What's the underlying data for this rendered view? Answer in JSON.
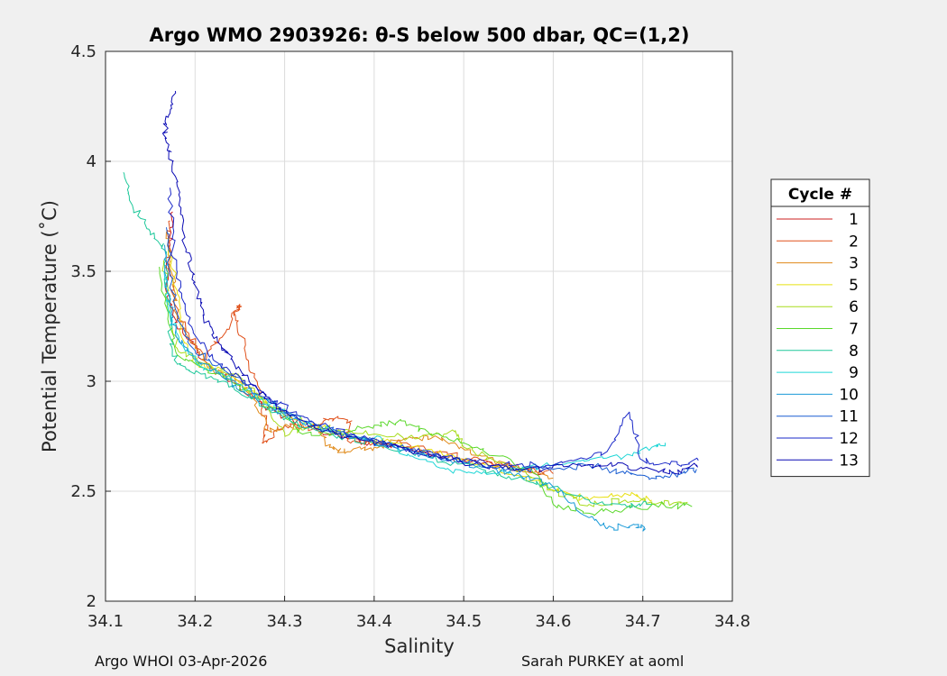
{
  "chart_data": {
    "type": "line",
    "title": "Argo WMO 2903926: θ-S below 500 dbar,  QC=(1,2)",
    "xlabel": "Salinity",
    "ylabel": "Potential Temperature (˚C)",
    "xlim": [
      34.1,
      34.8
    ],
    "ylim": [
      2.0,
      4.5
    ],
    "xticks": [
      "34.1",
      "34.2",
      "34.3",
      "34.4",
      "34.5",
      "34.6",
      "34.7",
      "34.8"
    ],
    "yticks": [
      "2",
      "2.5",
      "3",
      "3.5",
      "4",
      "4.5"
    ],
    "grid": true,
    "legend_title": "Cycle #",
    "legend_position": "right-outside",
    "series": [
      {
        "name": "1",
        "color": "#cc1f1f",
        "points": [
          [
            34.175,
            3.77
          ],
          [
            34.172,
            3.62
          ],
          [
            34.168,
            3.45
          ],
          [
            34.175,
            3.3
          ],
          [
            34.19,
            3.2
          ],
          [
            34.21,
            3.1
          ],
          [
            34.24,
            3.0
          ],
          [
            34.27,
            2.91
          ],
          [
            34.3,
            2.84
          ],
          [
            34.33,
            2.79
          ],
          [
            34.37,
            2.74
          ],
          [
            34.41,
            2.71
          ],
          [
            34.45,
            2.68
          ],
          [
            34.5,
            2.64
          ],
          [
            34.55,
            2.61
          ],
          [
            34.59,
            2.58
          ]
        ]
      },
      {
        "name": "2",
        "color": "#e0501a",
        "points": [
          [
            34.172,
            3.73
          ],
          [
            34.17,
            3.55
          ],
          [
            34.18,
            3.3
          ],
          [
            34.21,
            3.1
          ],
          [
            34.23,
            3.2
          ],
          [
            34.25,
            3.35
          ],
          [
            34.245,
            3.3
          ],
          [
            34.255,
            3.15
          ],
          [
            34.27,
            2.98
          ],
          [
            34.28,
            2.8
          ],
          [
            34.275,
            2.72
          ],
          [
            34.3,
            2.8
          ],
          [
            34.33,
            2.78
          ],
          [
            34.35,
            2.83
          ],
          [
            34.375,
            2.82
          ],
          [
            34.37,
            2.73
          ],
          [
            34.4,
            2.72
          ],
          [
            34.43,
            2.72
          ],
          [
            34.47,
            2.68
          ],
          [
            34.52,
            2.64
          ],
          [
            34.57,
            2.6
          ],
          [
            34.6,
            2.58
          ]
        ]
      },
      {
        "name": "3",
        "color": "#e08a1a",
        "points": [
          [
            34.168,
            3.68
          ],
          [
            34.175,
            3.48
          ],
          [
            34.18,
            3.3
          ],
          [
            34.2,
            3.15
          ],
          [
            34.22,
            3.05
          ],
          [
            34.25,
            3.0
          ],
          [
            34.265,
            2.92
          ],
          [
            34.28,
            2.78
          ],
          [
            34.31,
            2.8
          ],
          [
            34.335,
            2.8
          ],
          [
            34.35,
            2.7
          ],
          [
            34.37,
            2.68
          ],
          [
            34.4,
            2.7
          ],
          [
            34.43,
            2.73
          ],
          [
            34.46,
            2.75
          ],
          [
            34.49,
            2.72
          ],
          [
            34.52,
            2.66
          ],
          [
            34.56,
            2.6
          ],
          [
            34.6,
            2.56
          ]
        ]
      },
      {
        "name": "5",
        "color": "#e8e012",
        "points": [
          [
            34.17,
            3.6
          ],
          [
            34.18,
            3.4
          ],
          [
            34.185,
            3.2
          ],
          [
            34.2,
            3.08
          ],
          [
            34.23,
            3.05
          ],
          [
            34.26,
            2.95
          ],
          [
            34.29,
            2.88
          ],
          [
            34.32,
            2.82
          ],
          [
            34.35,
            2.78
          ],
          [
            34.38,
            2.74
          ],
          [
            34.42,
            2.72
          ],
          [
            34.46,
            2.69
          ],
          [
            34.5,
            2.64
          ],
          [
            34.54,
            2.6
          ],
          [
            34.58,
            2.55
          ],
          [
            34.61,
            2.5
          ],
          [
            34.64,
            2.46
          ],
          [
            34.68,
            2.49
          ],
          [
            34.71,
            2.46
          ]
        ]
      },
      {
        "name": "6",
        "color": "#a8dc1c",
        "points": [
          [
            34.165,
            3.55
          ],
          [
            34.17,
            3.35
          ],
          [
            34.18,
            3.15
          ],
          [
            34.21,
            3.08
          ],
          [
            34.25,
            3.02
          ],
          [
            34.28,
            2.9
          ],
          [
            34.3,
            2.76
          ],
          [
            34.33,
            2.8
          ],
          [
            34.36,
            2.78
          ],
          [
            34.4,
            2.76
          ],
          [
            34.45,
            2.74
          ],
          [
            34.49,
            2.77
          ],
          [
            34.5,
            2.7
          ],
          [
            34.53,
            2.65
          ],
          [
            34.57,
            2.58
          ],
          [
            34.6,
            2.5
          ],
          [
            34.64,
            2.44
          ],
          [
            34.68,
            2.46
          ],
          [
            34.72,
            2.45
          ],
          [
            34.75,
            2.45
          ]
        ]
      },
      {
        "name": "7",
        "color": "#5ad82a",
        "points": [
          [
            34.16,
            3.52
          ],
          [
            34.17,
            3.3
          ],
          [
            34.18,
            3.12
          ],
          [
            34.21,
            3.06
          ],
          [
            34.24,
            3.0
          ],
          [
            34.27,
            2.92
          ],
          [
            34.3,
            2.84
          ],
          [
            34.32,
            2.76
          ],
          [
            34.36,
            2.76
          ],
          [
            34.4,
            2.8
          ],
          [
            34.43,
            2.82
          ],
          [
            34.46,
            2.77
          ],
          [
            34.5,
            2.72
          ],
          [
            34.54,
            2.66
          ],
          [
            34.58,
            2.58
          ],
          [
            34.6,
            2.44
          ],
          [
            34.64,
            2.4
          ],
          [
            34.68,
            2.42
          ],
          [
            34.72,
            2.44
          ],
          [
            34.755,
            2.43
          ]
        ]
      },
      {
        "name": "8",
        "color": "#1ec89a",
        "points": [
          [
            34.12,
            3.95
          ],
          [
            34.13,
            3.8
          ],
          [
            34.15,
            3.68
          ],
          [
            34.165,
            3.6
          ],
          [
            34.17,
            3.4
          ],
          [
            34.172,
            3.2
          ],
          [
            34.18,
            3.08
          ],
          [
            34.2,
            3.04
          ],
          [
            34.23,
            3.0
          ],
          [
            34.26,
            2.93
          ],
          [
            34.29,
            2.86
          ],
          [
            34.32,
            2.79
          ],
          [
            34.36,
            2.75
          ],
          [
            34.4,
            2.72
          ],
          [
            34.44,
            2.68
          ],
          [
            34.48,
            2.63
          ],
          [
            34.52,
            2.6
          ],
          [
            34.56,
            2.56
          ],
          [
            34.6,
            2.52
          ],
          [
            34.64,
            2.46
          ],
          [
            34.68,
            2.44
          ],
          [
            34.71,
            2.44
          ]
        ]
      },
      {
        "name": "9",
        "color": "#1ed6d6",
        "points": [
          [
            34.165,
            3.5
          ],
          [
            34.17,
            3.32
          ],
          [
            34.182,
            3.18
          ],
          [
            34.205,
            3.07
          ],
          [
            34.235,
            3.02
          ],
          [
            34.265,
            2.94
          ],
          [
            34.295,
            2.87
          ],
          [
            34.33,
            2.8
          ],
          [
            34.37,
            2.76
          ],
          [
            34.41,
            2.73
          ],
          [
            34.44,
            2.66
          ],
          [
            34.48,
            2.6
          ],
          [
            34.52,
            2.58
          ],
          [
            34.56,
            2.6
          ],
          [
            34.6,
            2.62
          ],
          [
            34.64,
            2.64
          ],
          [
            34.68,
            2.66
          ],
          [
            34.71,
            2.7
          ],
          [
            34.725,
            2.72
          ]
        ]
      },
      {
        "name": "10",
        "color": "#1a9ad8",
        "points": [
          [
            34.166,
            3.62
          ],
          [
            34.17,
            3.4
          ],
          [
            34.178,
            3.22
          ],
          [
            34.2,
            3.1
          ],
          [
            34.23,
            3.02
          ],
          [
            34.26,
            2.94
          ],
          [
            34.29,
            2.87
          ],
          [
            34.32,
            2.81
          ],
          [
            34.36,
            2.76
          ],
          [
            34.4,
            2.72
          ],
          [
            34.44,
            2.68
          ],
          [
            34.48,
            2.64
          ],
          [
            34.52,
            2.61
          ],
          [
            34.56,
            2.58
          ],
          [
            34.6,
            2.52
          ],
          [
            34.64,
            2.38
          ],
          [
            34.66,
            2.33
          ],
          [
            34.69,
            2.35
          ],
          [
            34.703,
            2.33
          ]
        ]
      },
      {
        "name": "11",
        "color": "#1a5ed2",
        "points": [
          [
            34.168,
            3.7
          ],
          [
            34.172,
            3.48
          ],
          [
            34.18,
            3.28
          ],
          [
            34.2,
            3.14
          ],
          [
            34.23,
            3.06
          ],
          [
            34.26,
            2.97
          ],
          [
            34.29,
            2.89
          ],
          [
            34.32,
            2.82
          ],
          [
            34.36,
            2.77
          ],
          [
            34.4,
            2.73
          ],
          [
            34.44,
            2.69
          ],
          [
            34.48,
            2.65
          ],
          [
            34.52,
            2.62
          ],
          [
            34.56,
            2.6
          ],
          [
            34.6,
            2.6
          ],
          [
            34.64,
            2.62
          ],
          [
            34.68,
            2.58
          ],
          [
            34.71,
            2.56
          ],
          [
            34.74,
            2.58
          ],
          [
            34.76,
            2.6
          ]
        ]
      },
      {
        "name": "12",
        "color": "#1a28c8",
        "points": [
          [
            34.172,
            3.88
          ],
          [
            34.175,
            3.6
          ],
          [
            34.185,
            3.4
          ],
          [
            34.198,
            3.22
          ],
          [
            34.22,
            3.1
          ],
          [
            34.25,
            3.02
          ],
          [
            34.28,
            2.93
          ],
          [
            34.31,
            2.86
          ],
          [
            34.34,
            2.8
          ],
          [
            34.38,
            2.75
          ],
          [
            34.42,
            2.71
          ],
          [
            34.46,
            2.67
          ],
          [
            34.5,
            2.64
          ],
          [
            34.54,
            2.62
          ],
          [
            34.58,
            2.62
          ],
          [
            34.62,
            2.64
          ],
          [
            34.66,
            2.68
          ],
          [
            34.685,
            2.86
          ],
          [
            34.7,
            2.64
          ],
          [
            34.73,
            2.62
          ],
          [
            34.762,
            2.64
          ]
        ]
      },
      {
        "name": "13",
        "color": "#0a0ab4",
        "points": [
          [
            34.178,
            4.32
          ],
          [
            34.17,
            4.2
          ],
          [
            34.165,
            4.12
          ],
          [
            34.175,
            4.0
          ],
          [
            34.182,
            3.8
          ],
          [
            34.19,
            3.6
          ],
          [
            34.2,
            3.45
          ],
          [
            34.21,
            3.3
          ],
          [
            34.225,
            3.18
          ],
          [
            34.24,
            3.1
          ],
          [
            34.26,
            3.0
          ],
          [
            34.285,
            2.9
          ],
          [
            34.315,
            2.83
          ],
          [
            34.35,
            2.77
          ],
          [
            34.39,
            2.73
          ],
          [
            34.43,
            2.7
          ],
          [
            34.47,
            2.66
          ],
          [
            34.51,
            2.62
          ],
          [
            34.55,
            2.6
          ],
          [
            34.59,
            2.6
          ],
          [
            34.63,
            2.62
          ],
          [
            34.67,
            2.62
          ],
          [
            34.71,
            2.6
          ],
          [
            34.74,
            2.58
          ],
          [
            34.76,
            2.62
          ]
        ]
      }
    ]
  },
  "footer": {
    "left": "Argo WHOI 03-Apr-2026",
    "right": "Sarah PURKEY at aoml"
  }
}
